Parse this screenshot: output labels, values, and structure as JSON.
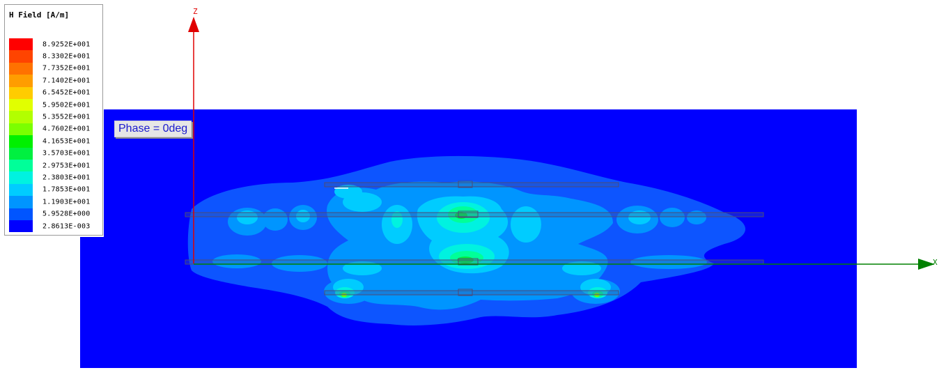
{
  "legend": {
    "title": "H Field [A/m]",
    "entries": [
      {
        "value": "8.9252E+001",
        "color": "#ff0000"
      },
      {
        "value": "8.3302E+001",
        "color": "#ff4400"
      },
      {
        "value": "7.7352E+001",
        "color": "#ff7200"
      },
      {
        "value": "7.1402E+001",
        "color": "#ff9d00"
      },
      {
        "value": "6.5452E+001",
        "color": "#ffcc00"
      },
      {
        "value": "5.9502E+001",
        "color": "#e1ff00"
      },
      {
        "value": "5.3552E+001",
        "color": "#b2ff00"
      },
      {
        "value": "4.7602E+001",
        "color": "#7bff00"
      },
      {
        "value": "4.1653E+001",
        "color": "#00f000"
      },
      {
        "value": "3.5703E+001",
        "color": "#00f040"
      },
      {
        "value": "2.9753E+001",
        "color": "#00ff99"
      },
      {
        "value": "2.3803E+001",
        "color": "#00f2e0"
      },
      {
        "value": "1.7853E+001",
        "color": "#00ccff"
      },
      {
        "value": "1.1903E+001",
        "color": "#0095ff"
      },
      {
        "value": "5.9528E+000",
        "color": "#0055ff"
      },
      {
        "value": "2.8613E-003",
        "color": "#0000ff"
      }
    ]
  },
  "phase_label": "Phase = 0deg",
  "axes": {
    "z_label": "Z",
    "x_label": "X",
    "z_color": "#e00000",
    "x_color": "#008000"
  },
  "field_colors": {
    "background": "#0000ff",
    "level1": "#0d55ff",
    "level2": "#0095ff",
    "level3": "#00ccff",
    "level4": "#00f2e0",
    "level5": "#00ff99",
    "level6": "#00f040",
    "level7": "#7bff00"
  }
}
